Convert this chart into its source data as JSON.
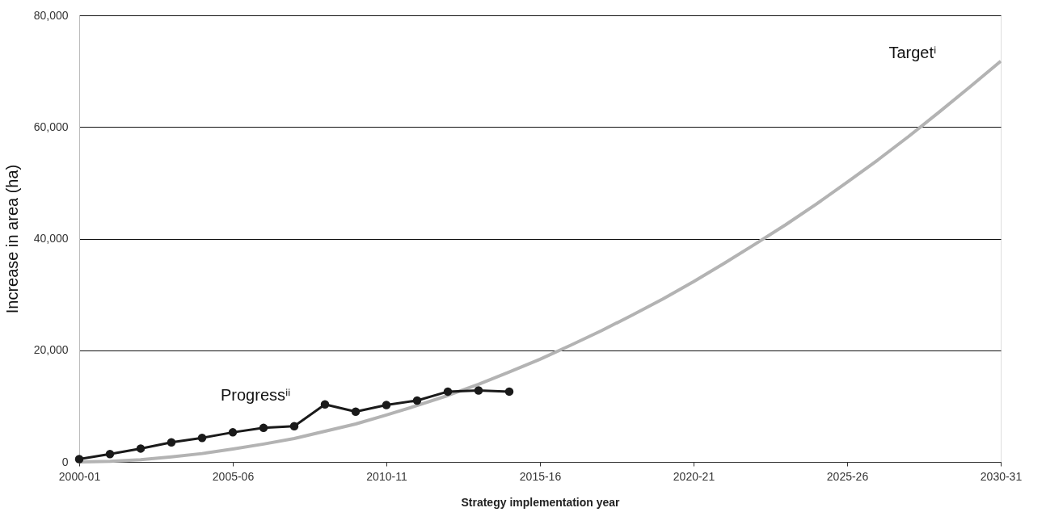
{
  "chart_data": {
    "type": "line",
    "xlabel": "Strategy implementation year",
    "ylabel": "Increase in area (ha)",
    "categories": [
      "2000-01",
      null,
      null,
      null,
      null,
      "2005-06",
      null,
      null,
      null,
      null,
      "2010-11",
      null,
      null,
      null,
      null,
      "2015-16",
      null,
      null,
      null,
      null,
      "2020-21",
      null,
      null,
      null,
      null,
      "2025-26",
      null,
      null,
      null,
      null,
      "2030-31"
    ],
    "ylim": [
      0,
      80000
    ],
    "yticks": [
      {
        "value": 0,
        "label": "0"
      },
      {
        "value": 20000,
        "label": "20,000"
      },
      {
        "value": 40000,
        "label": "40,000"
      },
      {
        "value": 60000,
        "label": "60,000"
      },
      {
        "value": 80000,
        "label": "80,000"
      }
    ],
    "grid": "y",
    "series": [
      {
        "name": "Targetⁱ",
        "color": "#b3b3b3",
        "marker": "none",
        "values": [
          0,
          100,
          400,
          900,
          1500,
          2300,
          3200,
          4200,
          5500,
          6800,
          8400,
          10100,
          11900,
          13900,
          16100,
          18400,
          20900,
          23500,
          26300,
          29200,
          32300,
          35600,
          39000,
          42500,
          46200,
          50100,
          54100,
          58300,
          62700,
          67200,
          71800
        ]
      },
      {
        "name": "Progressⁱⁱ",
        "color": "#1a1a1a",
        "marker": "circle",
        "values": [
          500,
          1400,
          2400,
          3500,
          4300,
          5300,
          6100,
          6400,
          10300,
          9000,
          10200,
          11000,
          12600,
          12800,
          12600,
          null,
          null,
          null,
          null,
          null,
          null,
          null,
          null,
          null,
          null,
          null,
          null,
          null,
          null,
          null,
          null
        ]
      }
    ]
  }
}
